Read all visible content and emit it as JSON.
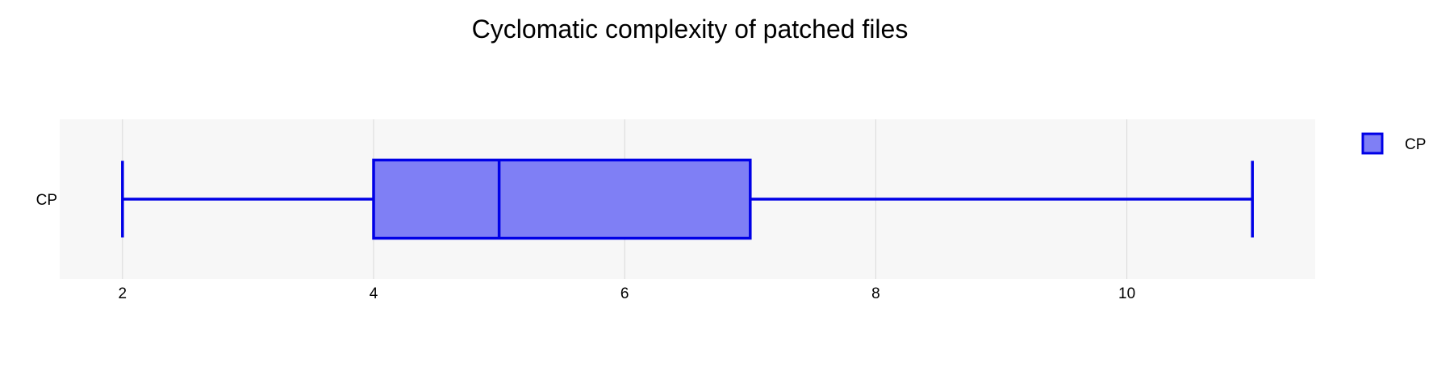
{
  "chart_data": {
    "type": "box",
    "title": "Cyclomatic complexity of patched files",
    "orientation": "horizontal",
    "xlabel": "",
    "ylabel": "",
    "xlim": [
      1.5,
      11.5
    ],
    "xticks": [
      2,
      4,
      6,
      8,
      10
    ],
    "grid": true,
    "legend": {
      "position": "top-right",
      "entries": [
        "CP"
      ]
    },
    "series": [
      {
        "name": "CP",
        "category": "CP",
        "min": 2,
        "q1": 4,
        "median": 5,
        "q3": 7,
        "max": 11,
        "color": "#0000e6",
        "fill": "#7f7ff5"
      }
    ]
  },
  "colors": {
    "plot_background": "#f7f7f7",
    "grid": "#d9d9d9",
    "text": "#000000"
  }
}
